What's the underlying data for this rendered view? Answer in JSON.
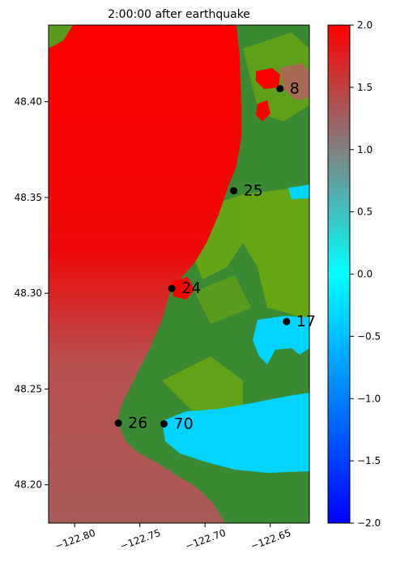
{
  "chart_data": {
    "type": "heatmap",
    "title": "2:00:00 after earthquake",
    "xlabel": "",
    "ylabel": "",
    "xlim": [
      -122.82,
      -122.62
    ],
    "ylim": [
      48.18,
      48.44
    ],
    "x_ticks": [
      -122.8,
      -122.75,
      -122.7,
      -122.65
    ],
    "x_tick_labels": [
      "−122.80",
      "−122.75",
      "−122.70",
      "−122.65"
    ],
    "y_ticks": [
      48.2,
      48.25,
      48.3,
      48.35,
      48.4
    ],
    "y_tick_labels": [
      "48.20",
      "48.25",
      "48.30",
      "48.35",
      "48.40"
    ],
    "colorbar": {
      "range": [
        -2.0,
        2.0
      ],
      "ticks": [
        2.0,
        1.5,
        1.0,
        0.5,
        0.0,
        -0.5,
        -1.0,
        -1.5,
        -2.0
      ],
      "tick_labels": [
        "2.0",
        "1.5",
        "1.0",
        "0.5",
        "0.0",
        "−0.5",
        "−1.0",
        "−1.5",
        "−2.0"
      ],
      "colors": [
        "#0000ff",
        "#00bfff",
        "#00ffff",
        "#808080",
        "#ff0000"
      ]
    },
    "colors": {
      "land": "#3a8a34",
      "land_light": "#6faa10",
      "water_high": "#ff0000",
      "water_mid": "#a85a5a",
      "water_low": "#00d4ff",
      "marker": "#000000"
    },
    "gauges": [
      {
        "label": "8",
        "x": -122.6425,
        "y": 48.4068
      },
      {
        "label": "25",
        "x": -122.678,
        "y": 48.3535
      },
      {
        "label": "24",
        "x": -122.7255,
        "y": 48.3025
      },
      {
        "label": "17",
        "x": -122.6375,
        "y": 48.2852
      },
      {
        "label": "26",
        "x": -122.7665,
        "y": 48.2322
      },
      {
        "label": "70",
        "x": -122.7315,
        "y": 48.2318
      }
    ]
  }
}
